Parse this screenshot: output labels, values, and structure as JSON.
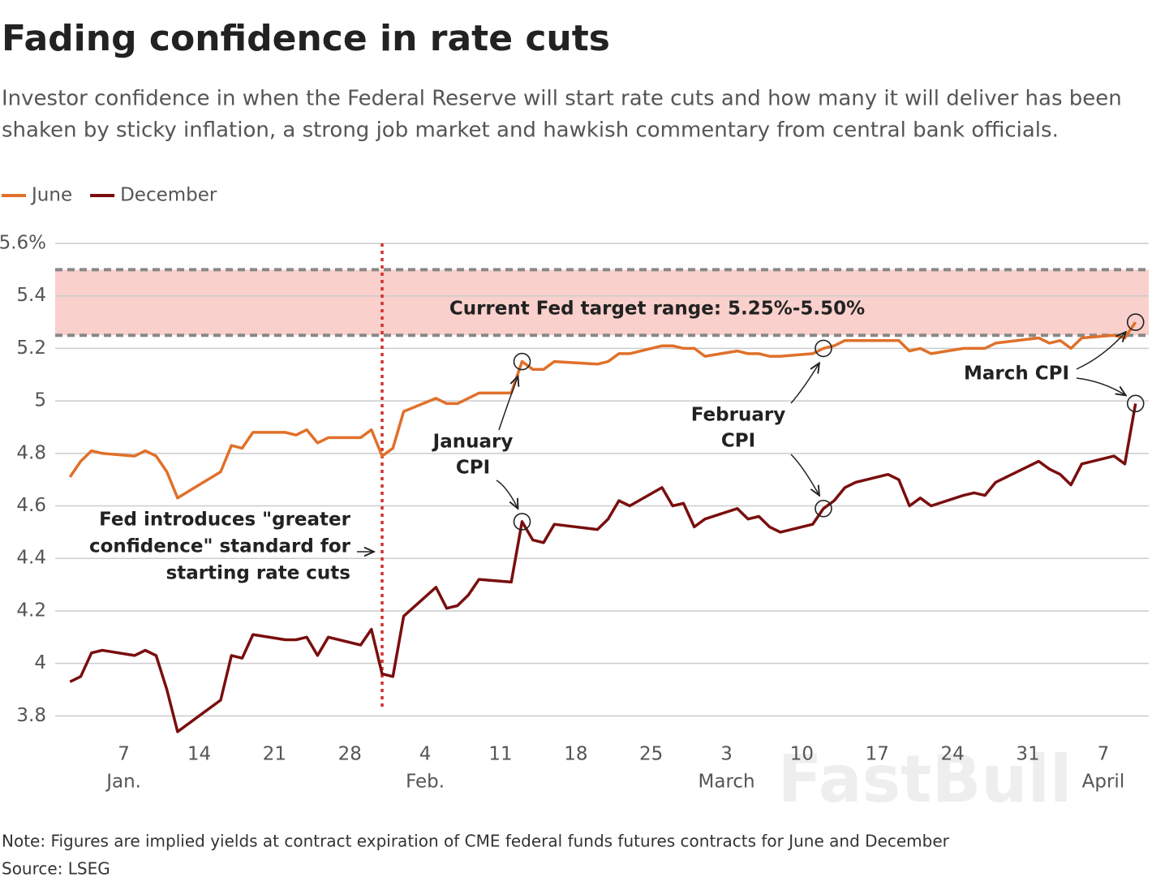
{
  "chart_data": {
    "type": "line",
    "title": "Fading confidence in rate cuts",
    "subtitle": [
      "Investor confidence in when the Federal Reserve will start rate cuts and how many it will deliver has been",
      "shaken by sticky inflation, a strong job market and hawkish commentary from central bank officials."
    ],
    "x": [
      "Jan 2",
      "Jan 3",
      "Jan 4",
      "Jan 5",
      "Jan 8",
      "Jan 9",
      "Jan 10",
      "Jan 11",
      "Jan 12",
      "Jan 16",
      "Jan 17",
      "Jan 18",
      "Jan 19",
      "Jan 22",
      "Jan 23",
      "Jan 24",
      "Jan 25",
      "Jan 26",
      "Jan 29",
      "Jan 30",
      "Jan 31",
      "Feb 1",
      "Feb 2",
      "Feb 5",
      "Feb 6",
      "Feb 7",
      "Feb 8",
      "Feb 9",
      "Feb 12",
      "Feb 13",
      "Feb 14",
      "Feb 15",
      "Feb 16",
      "Feb 20",
      "Feb 21",
      "Feb 22",
      "Feb 23",
      "Feb 26",
      "Feb 27",
      "Feb 28",
      "Feb 29",
      "Mar 1",
      "Mar 4",
      "Mar 5",
      "Mar 6",
      "Mar 7",
      "Mar 8",
      "Mar 11",
      "Mar 12",
      "Mar 13",
      "Mar 14",
      "Mar 15",
      "Mar 18",
      "Mar 19",
      "Mar 20",
      "Mar 21",
      "Mar 22",
      "Mar 25",
      "Mar 26",
      "Mar 27",
      "Mar 28",
      "Apr 1",
      "Apr 2",
      "Apr 3",
      "Apr 4",
      "Apr 5",
      "Apr 8",
      "Apr 9",
      "Apr 10"
    ],
    "series": [
      {
        "name": "June",
        "color": "#e0702a",
        "values": [
          4.71,
          4.77,
          4.81,
          4.8,
          4.79,
          4.81,
          4.79,
          4.73,
          4.63,
          4.73,
          4.83,
          4.82,
          4.88,
          4.88,
          4.87,
          4.89,
          4.84,
          4.86,
          4.86,
          4.89,
          4.79,
          4.82,
          4.96,
          5.01,
          4.99,
          4.99,
          5.01,
          5.03,
          5.03,
          5.15,
          5.12,
          5.12,
          5.15,
          5.14,
          5.15,
          5.18,
          5.18,
          5.21,
          5.21,
          5.2,
          5.2,
          5.17,
          5.19,
          5.18,
          5.18,
          5.17,
          5.17,
          5.18,
          5.2,
          5.21,
          5.23,
          5.23,
          5.23,
          5.23,
          5.19,
          5.2,
          5.18,
          5.2,
          5.2,
          5.2,
          5.22,
          5.24,
          5.22,
          5.23,
          5.2,
          5.24,
          5.25,
          5.24,
          5.3
        ]
      },
      {
        "name": "December",
        "color": "#7a0e0e",
        "values": [
          3.93,
          3.95,
          4.04,
          4.05,
          4.03,
          4.05,
          4.03,
          3.9,
          3.74,
          3.86,
          4.03,
          4.02,
          4.11,
          4.09,
          4.09,
          4.1,
          4.03,
          4.1,
          4.07,
          4.13,
          3.96,
          3.95,
          4.18,
          4.29,
          4.21,
          4.22,
          4.26,
          4.32,
          4.31,
          4.54,
          4.47,
          4.46,
          4.53,
          4.51,
          4.55,
          4.62,
          4.6,
          4.67,
          4.6,
          4.61,
          4.52,
          4.55,
          4.59,
          4.55,
          4.56,
          4.52,
          4.5,
          4.53,
          4.59,
          4.62,
          4.67,
          4.69,
          4.72,
          4.7,
          4.6,
          4.63,
          4.6,
          4.64,
          4.65,
          4.64,
          4.69,
          4.77,
          4.74,
          4.72,
          4.68,
          4.76,
          4.79,
          4.76,
          4.99
        ]
      }
    ],
    "xlim": [
      "Jan 1",
      "Apr 11"
    ],
    "xticks": [
      {
        "value": "Jan 7",
        "label": "7"
      },
      {
        "value": "Jan 14",
        "label": "14"
      },
      {
        "value": "Jan 21",
        "label": "21"
      },
      {
        "value": "Jan 28",
        "label": "28"
      },
      {
        "value": "Feb 4",
        "label": "4"
      },
      {
        "value": "Feb 11",
        "label": "11"
      },
      {
        "value": "Feb 18",
        "label": "18"
      },
      {
        "value": "Feb 25",
        "label": "25"
      },
      {
        "value": "Mar 3",
        "label": "3"
      },
      {
        "value": "Mar 10",
        "label": "10"
      },
      {
        "value": "Mar 17",
        "label": "17"
      },
      {
        "value": "Mar 24",
        "label": "24"
      },
      {
        "value": "Mar 31",
        "label": "31"
      },
      {
        "value": "Apr 7",
        "label": "7"
      }
    ],
    "month_labels": [
      {
        "value": "Jan 7",
        "label": "Jan."
      },
      {
        "value": "Feb 4",
        "label": "Feb."
      },
      {
        "value": "Mar 3",
        "label": "March"
      },
      {
        "value": "Apr 7",
        "label": "April"
      }
    ],
    "ylim": [
      3.73,
      5.6
    ],
    "yticks": [
      3.8,
      4,
      4.2,
      4.4,
      4.6,
      4.8,
      5,
      5.2,
      5.4,
      {
        "value": 5.6,
        "label": "5.6%"
      }
    ],
    "grid": true,
    "band": [
      5.25,
      5.5
    ],
    "band_label": "Current Fed target range: 5.25%-5.50%",
    "vline": "Jan 31",
    "vline_label": [
      "Fed introduces \"greater",
      "confidence\" standard for",
      "starting rate cuts"
    ],
    "annotations": [
      {
        "x": "Feb 13",
        "label": [
          "January",
          "CPI"
        ]
      },
      {
        "x": "Mar 12",
        "label": [
          "February",
          "CPI"
        ]
      },
      {
        "x": "Apr 10",
        "label": [
          "March CPI"
        ]
      }
    ],
    "note": "Note: Figures are implied yields at contract expiration of CME federal funds futures contracts for June and December",
    "source": "Source: LSEG",
    "watermark": "FastBull"
  }
}
